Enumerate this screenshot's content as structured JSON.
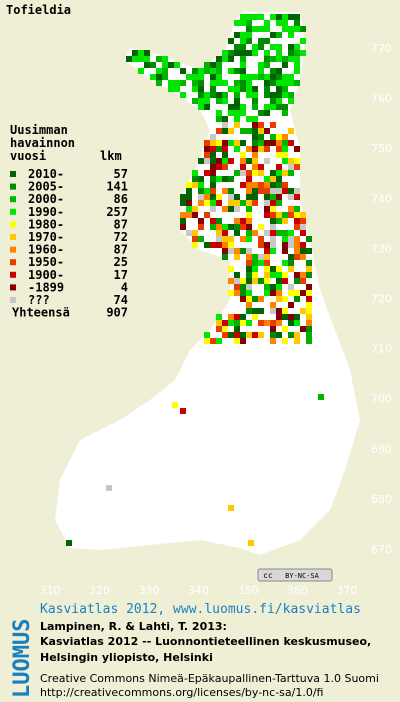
{
  "title": "Tofieldia",
  "legend": {
    "heading": [
      "Uusimman",
      "havainnon",
      "vuosi"
    ],
    "count_heading": "lkm",
    "rows": [
      {
        "label": "2010-",
        "count": 57,
        "color": "#006400"
      },
      {
        "label": "2005-",
        "count": 141,
        "color": "#008c00"
      },
      {
        "label": "2000-",
        "count": 86,
        "color": "#00b400"
      },
      {
        "label": "1990-",
        "count": 257,
        "color": "#00e600"
      },
      {
        "label": "1980-",
        "count": 87,
        "color": "#ffff00"
      },
      {
        "label": "1970-",
        "count": 72,
        "color": "#ffc800"
      },
      {
        "label": "1960-",
        "count": 87,
        "color": "#ff8200"
      },
      {
        "label": "1950-",
        "count": 25,
        "color": "#e63c00"
      },
      {
        "label": "1900-",
        "count": 17,
        "color": "#c80000"
      },
      {
        "label": "-1899",
        "count": 4,
        "color": "#820000"
      },
      {
        "label": "???",
        "count": 74,
        "color": "#c8c8c8"
      }
    ],
    "total_label": "Yhteensä",
    "total": 907
  },
  "grid": {
    "y_labels": [
      770,
      760,
      750,
      740,
      730,
      720,
      710,
      700,
      690,
      680,
      670
    ],
    "x_labels": [
      310,
      320,
      330,
      340,
      350,
      360,
      370
    ]
  },
  "badge": [
    "cc",
    "BY-NC-SA"
  ],
  "logo": "LUOMUS",
  "credits": {
    "link": "Kasviatlas 2012, www.luomus.fi/kasviatlas",
    "citation": [
      "Lampinen, R. & Lahti, T. 2013:",
      "Kasviatlas 2012 -- Luonnontieteellinen keskusmuseo,",
      "Helsingin yliopisto, Helsinki"
    ],
    "license": [
      "Creative Commons Nimeä-Epäkaupallinen-Tarttuva 1.0 Suomi",
      "http://creativecommons.org/licenses/by-nc-sa/1.0/fi"
    ]
  }
}
